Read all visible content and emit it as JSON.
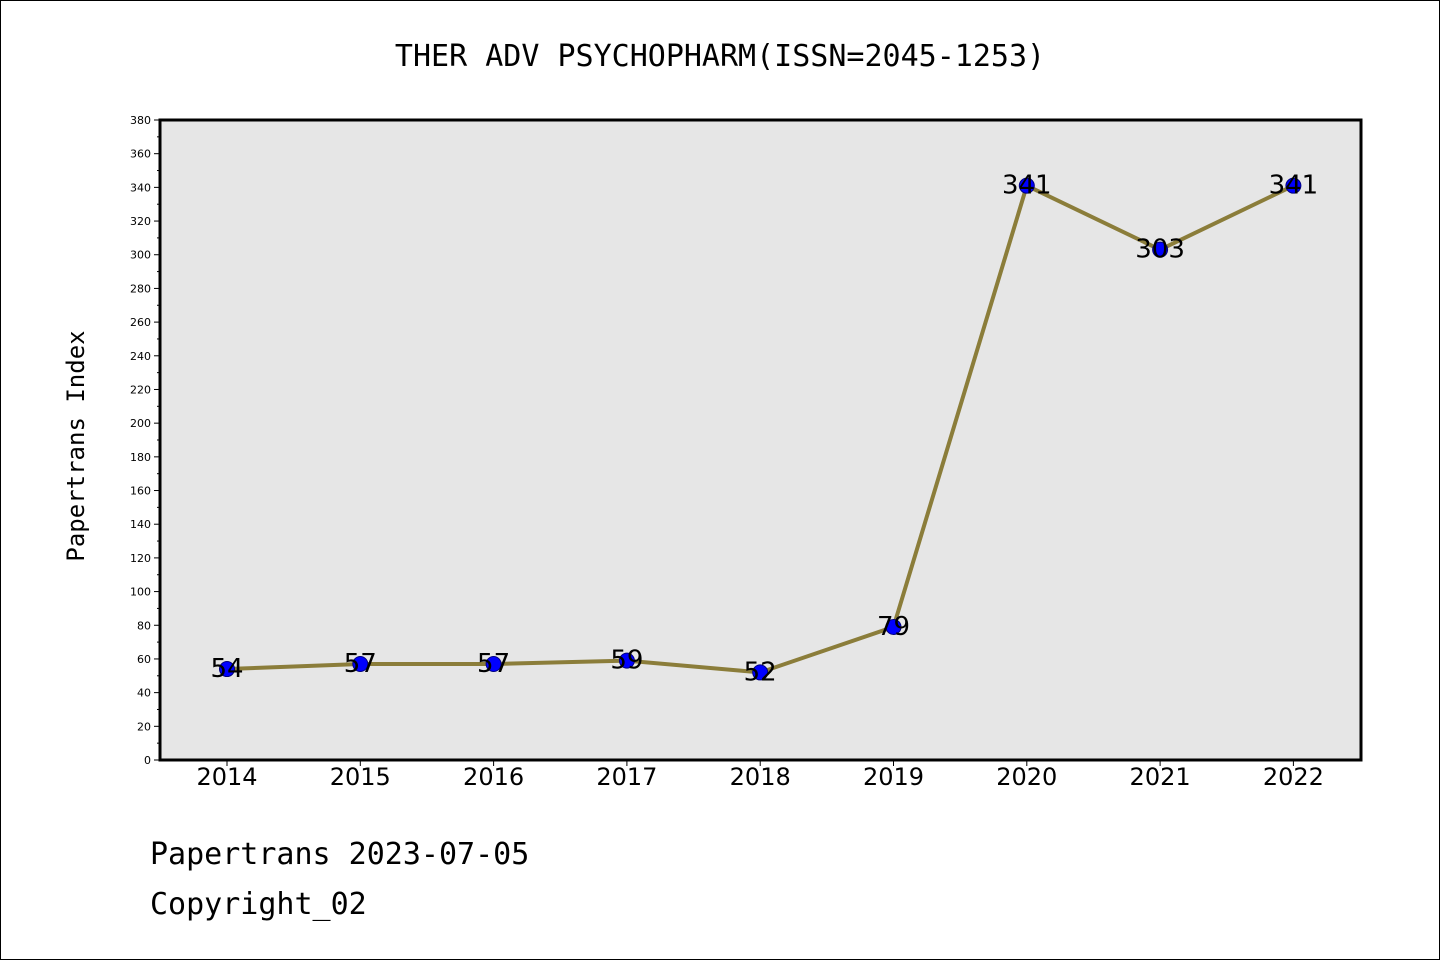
{
  "footer": {
    "line1": "Papertrans 2023-07-05",
    "line2": "Copyright_02"
  },
  "colors": {
    "plot_background": "#e6e6e6",
    "line": "#8b7d3a",
    "marker": "#0000ff",
    "marker_edge": "#000080"
  },
  "chart_data": {
    "type": "line",
    "title": "THER ADV PSYCHOPHARM(ISSN=2045-1253)",
    "xlabel": "",
    "ylabel": "Papertrans Index",
    "categories": [
      "2014",
      "2015",
      "2016",
      "2017",
      "2018",
      "2019",
      "2020",
      "2021",
      "2022"
    ],
    "values": [
      54,
      57,
      57,
      59,
      52,
      79,
      341,
      303,
      341
    ],
    "data_labels": [
      "54",
      "57",
      "57",
      "59",
      "52",
      "79",
      "341",
      "303",
      "341"
    ],
    "ylim": [
      0,
      380
    ],
    "yticks": [
      0,
      20,
      40,
      60,
      80,
      100,
      120,
      140,
      160,
      180,
      200,
      220,
      240,
      260,
      280,
      300,
      320,
      340,
      360,
      380
    ],
    "grid": false,
    "legend": "none"
  }
}
